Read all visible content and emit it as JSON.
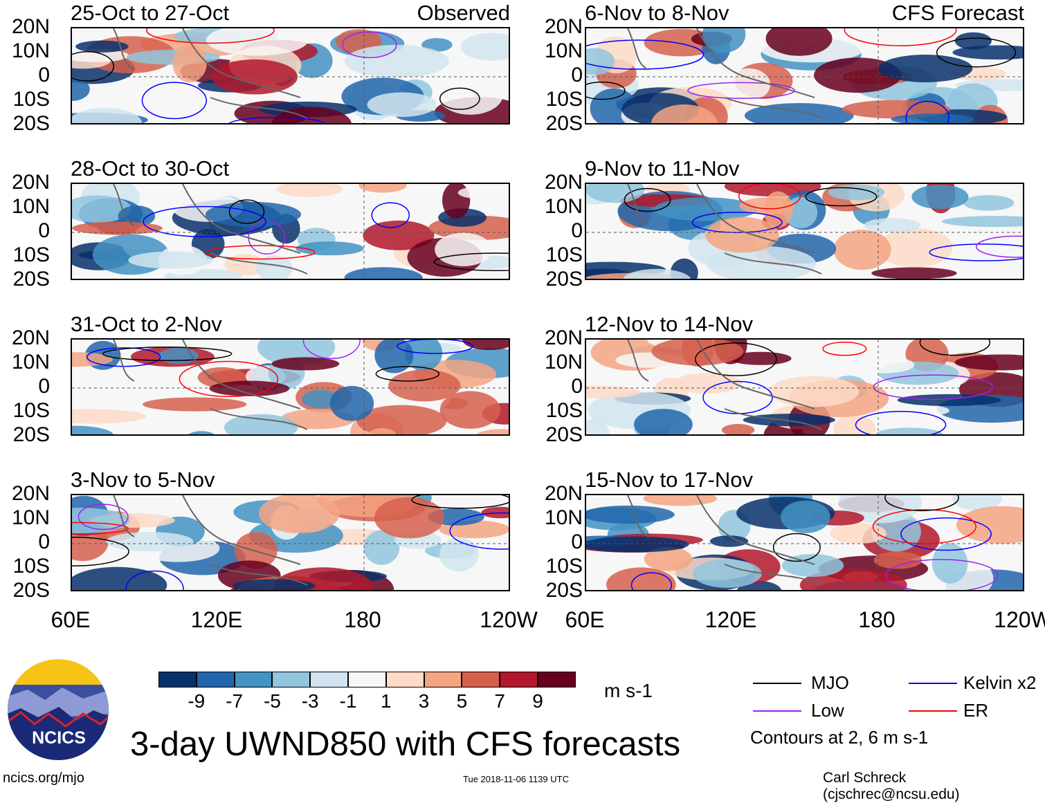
{
  "panels_left": [
    {
      "title": "25-Oct to 27-Oct",
      "tag": "Observed"
    },
    {
      "title": "28-Oct to 30-Oct"
    },
    {
      "title": "31-Oct to 2-Nov"
    },
    {
      "title": "3-Nov to 5-Nov"
    }
  ],
  "panels_right": [
    {
      "title": "6-Nov to 8-Nov",
      "tag": "CFS Forecast"
    },
    {
      "title": "9-Nov to 11-Nov"
    },
    {
      "title": "12-Nov to 14-Nov"
    },
    {
      "title": "15-Nov to 17-Nov"
    }
  ],
  "lat_labels": [
    "20N",
    "10N",
    "0",
    "10S",
    "20S"
  ],
  "lon_labels": [
    "60E",
    "120E",
    "180",
    "120W"
  ],
  "colorbar": {
    "colors": [
      "#08306b",
      "#2166ac",
      "#4393c3",
      "#92c5de",
      "#d1e5f0",
      "#f7f7f7",
      "#fddbc7",
      "#f4a582",
      "#d6604d",
      "#b2182b",
      "#67001f"
    ],
    "labels": [
      "-9",
      "-7",
      "-5",
      "-3",
      "-1",
      "1",
      "3",
      "5",
      "7",
      "9"
    ],
    "units": "m s-1"
  },
  "legend": {
    "items": [
      {
        "label": "MJO",
        "color": "#000000"
      },
      {
        "label": "Kelvin x2",
        "color": "#0000ff"
      },
      {
        "label": "Low",
        "color": "#a020f0"
      },
      {
        "label": "ER",
        "color": "#ff0000"
      }
    ],
    "note": "Contours at 2, 6 m s-1"
  },
  "logo_text": "NCICS",
  "main_title": "3-day UWND850 with CFS forecasts",
  "footer": {
    "url": "ncics.org/mjo",
    "timestamp": "Tue 2018-11-06 1139 UTC",
    "credit": "Carl Schreck (cjschrec@ncsu.edu)"
  }
}
